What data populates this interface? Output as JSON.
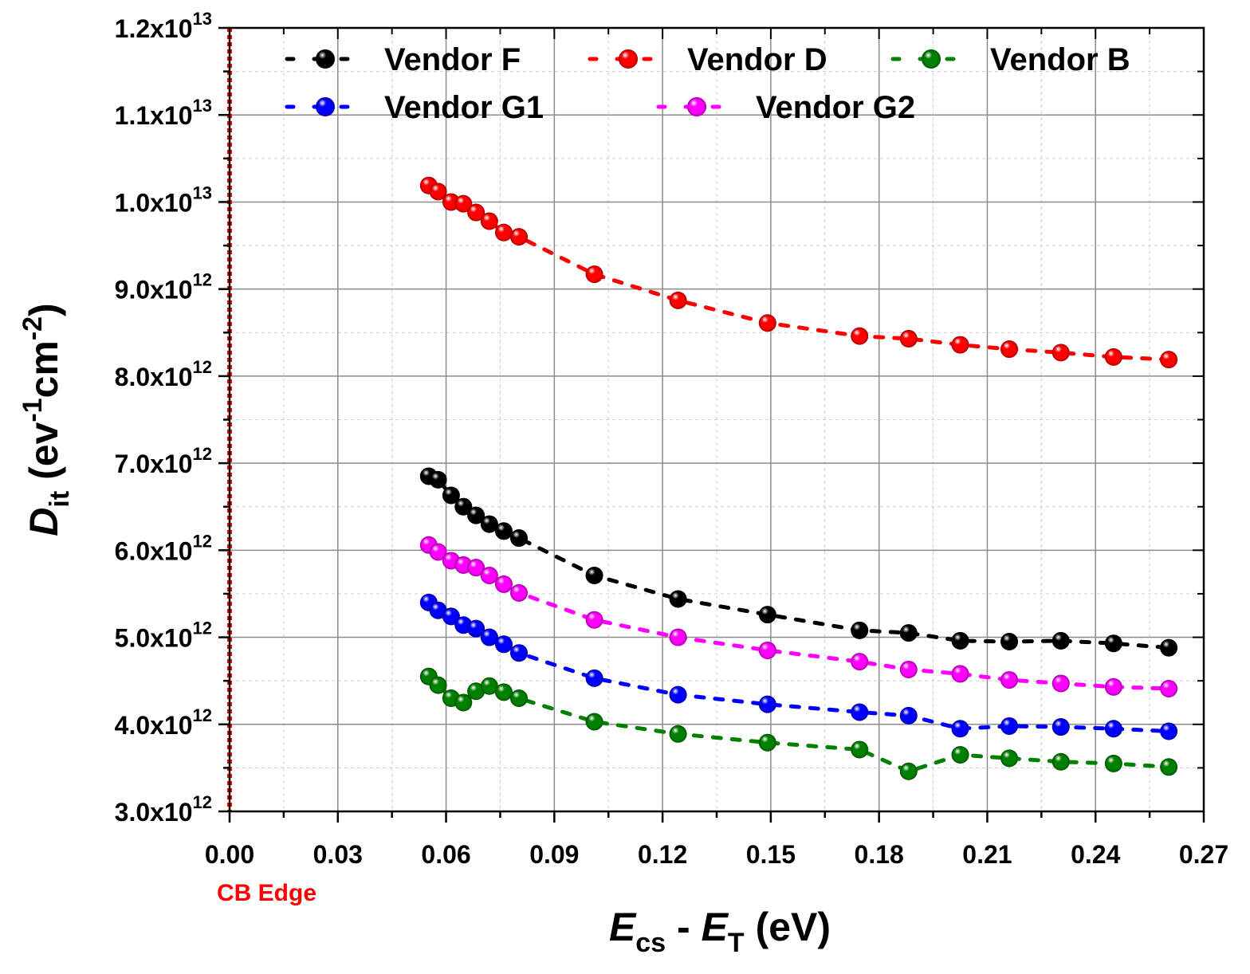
{
  "chart_data": {
    "type": "scatter",
    "title": "",
    "xlabel": {
      "main": "E",
      "sub1": "cs",
      "mid": " - ",
      "main2": "E",
      "sub2": "T",
      "tail": " (eV)"
    },
    "ylabel": {
      "main": "D",
      "sub": "it",
      "tail1": " (ev",
      "sup1": "-1",
      "tail2": "cm",
      "sup2": "-2",
      "tail3": ")"
    },
    "xlim": [
      0.0,
      0.27
    ],
    "ylim": [
      3000000000000.0,
      12000000000000.0
    ],
    "x_ticks": [
      "0.00",
      "0.03",
      "0.06",
      "0.09",
      "0.12",
      "0.15",
      "0.18",
      "0.21",
      "0.24",
      "0.27"
    ],
    "y_ticks": [
      {
        "mant": "3.0x10",
        "exp": "12"
      },
      {
        "mant": "4.0x10",
        "exp": "12"
      },
      {
        "mant": "5.0x10",
        "exp": "12"
      },
      {
        "mant": "6.0x10",
        "exp": "12"
      },
      {
        "mant": "7.0x10",
        "exp": "12"
      },
      {
        "mant": "8.0x10",
        "exp": "12"
      },
      {
        "mant": "9.0x10",
        "exp": "12"
      },
      {
        "mant": "1.0x10",
        "exp": "13"
      },
      {
        "mant": "1.1x10",
        "exp": "13"
      },
      {
        "mant": "1.2x10",
        "exp": "13"
      }
    ],
    "grid": true,
    "legend_position": "top",
    "annotation": {
      "text": "CB Edge",
      "x": 0.0,
      "color": "#ff0000"
    },
    "x": [
      0.0552,
      0.0578,
      0.0614,
      0.0648,
      0.0683,
      0.072,
      0.076,
      0.0802,
      0.1011,
      0.1243,
      0.1491,
      0.1746,
      0.1882,
      0.2025,
      0.2161,
      0.2304,
      0.245,
      0.2603
    ],
    "series": [
      {
        "name": "Vendor F",
        "color": "#000000",
        "values": [
          6850000000000.0,
          6810000000000.0,
          6630000000000.0,
          6500000000000.0,
          6400000000000.0,
          6300000000000.0,
          6220000000000.0,
          6140000000000.0,
          5710000000000.0,
          5440000000000.0,
          5260000000000.0,
          5080000000000.0,
          5050000000000.0,
          4960000000000.0,
          4950000000000.0,
          4960000000000.0,
          4930000000000.0,
          4880000000000.0
        ]
      },
      {
        "name": "Vendor D",
        "color": "#ff0000",
        "values": [
          10190000000000.0,
          10120000000000.0,
          10000000000000.0,
          9980000000000.0,
          9880000000000.0,
          9780000000000.0,
          9650000000000.0,
          9600000000000.0,
          9170000000000.0,
          8870000000000.0,
          8610000000000.0,
          8460000000000.0,
          8430000000000.0,
          8360000000000.0,
          8310000000000.0,
          8270000000000.0,
          8220000000000.0,
          8190000000000.0
        ]
      },
      {
        "name": "Vendor B",
        "color": "#008000",
        "values": [
          4550000000000.0,
          4450000000000.0,
          4300000000000.0,
          4250000000000.0,
          4380000000000.0,
          4440000000000.0,
          4370000000000.0,
          4300000000000.0,
          4030000000000.0,
          3890000000000.0,
          3790000000000.0,
          3710000000000.0,
          3460000000000.0,
          3650000000000.0,
          3610000000000.0,
          3570000000000.0,
          3550000000000.0,
          3510000000000.0
        ]
      },
      {
        "name": "Vendor G1",
        "color": "#0000ff",
        "values": [
          5400000000000.0,
          5310000000000.0,
          5240000000000.0,
          5140000000000.0,
          5100000000000.0,
          5000000000000.0,
          4920000000000.0,
          4820000000000.0,
          4530000000000.0,
          4340000000000.0,
          4230000000000.0,
          4140000000000.0,
          4100000000000.0,
          3950000000000.0,
          3980000000000.0,
          3970000000000.0,
          3950000000000.0,
          3920000000000.0
        ]
      },
      {
        "name": "Vendor G2",
        "color": "#ff00ff",
        "values": [
          6060000000000.0,
          5980000000000.0,
          5880000000000.0,
          5830000000000.0,
          5800000000000.0,
          5710000000000.0,
          5610000000000.0,
          5510000000000.0,
          5200000000000.0,
          5000000000000.0,
          4850000000000.0,
          4720000000000.0,
          4630000000000.0,
          4580000000000.0,
          4510000000000.0,
          4470000000000.0,
          4430000000000.0,
          4410000000000.0
        ]
      }
    ],
    "legend_layout": [
      [
        "Vendor F",
        "Vendor D",
        "Vendor B"
      ],
      [
        "Vendor G1",
        "Vendor G2"
      ]
    ]
  }
}
